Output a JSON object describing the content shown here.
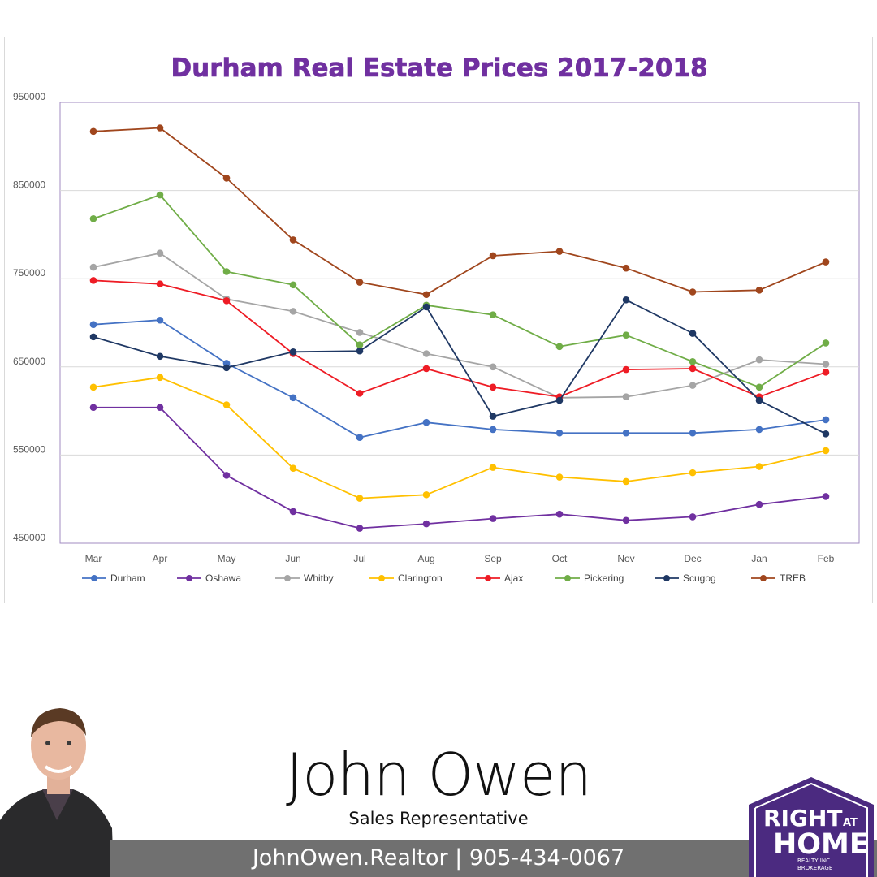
{
  "chart_data": {
    "type": "line",
    "title": "Durham Real Estate Prices 2017-2018",
    "categories": [
      "Mar",
      "Apr",
      "May",
      "Jun",
      "Jul",
      "Aug",
      "Sep",
      "Oct",
      "Nov",
      "Dec",
      "Jan",
      "Feb"
    ],
    "y_ticks": [
      "950000",
      "850000",
      "750000",
      "650000",
      "550000",
      "450000"
    ],
    "ylim": [
      450000,
      950000
    ],
    "grid": true,
    "legend_position": "bottom",
    "series": [
      {
        "name": "Durham",
        "color": "#4472c4",
        "values": [
          698000,
          703000,
          654000,
          615000,
          570000,
          587000,
          579000,
          575000,
          575000,
          575000,
          579000,
          590000
        ]
      },
      {
        "name": "Oshawa",
        "color": "#7030a0",
        "values": [
          604000,
          604000,
          527000,
          486000,
          467000,
          472000,
          478000,
          483000,
          476000,
          480000,
          494000,
          503000
        ]
      },
      {
        "name": "Whitby",
        "color": "#a5a5a5",
        "values": [
          763000,
          779000,
          727000,
          713000,
          689000,
          665000,
          650000,
          615000,
          616000,
          629000,
          658000,
          653000
        ]
      },
      {
        "name": "Clarington",
        "color": "#ffc000",
        "values": [
          627000,
          638000,
          607000,
          535000,
          501000,
          505000,
          536000,
          525000,
          520000,
          530000,
          537000,
          555000
        ]
      },
      {
        "name": "Ajax",
        "color": "#ee1c25",
        "values": [
          748000,
          744000,
          725000,
          665000,
          620000,
          648000,
          627000,
          616000,
          647000,
          648000,
          616000,
          644000
        ]
      },
      {
        "name": "Pickering",
        "color": "#70ad47",
        "values": [
          818000,
          845000,
          758000,
          743000,
          675000,
          720000,
          709000,
          673000,
          686000,
          656000,
          627000,
          677000
        ]
      },
      {
        "name": "Scugog",
        "color": "#1f3864",
        "values": [
          684000,
          662000,
          649000,
          667000,
          668000,
          718000,
          594000,
          612000,
          726000,
          688000,
          612000,
          574000
        ]
      },
      {
        "name": "TREB",
        "color": "#a0461d",
        "values": [
          917000,
          921000,
          864000,
          794000,
          746000,
          732000,
          776000,
          781000,
          762000,
          735000,
          737000,
          769000
        ]
      }
    ]
  },
  "agent": {
    "name": "John Owen",
    "role": "Sales Representative",
    "contact": "JohnOwen.Realtor | 905-434-0067"
  },
  "logo": {
    "line1": "RIGHT",
    "line1_small": "AT",
    "line2": "HOME",
    "sub1": "REALTY INC.",
    "sub2": "BROKERAGE",
    "color": "#4b2a80"
  }
}
